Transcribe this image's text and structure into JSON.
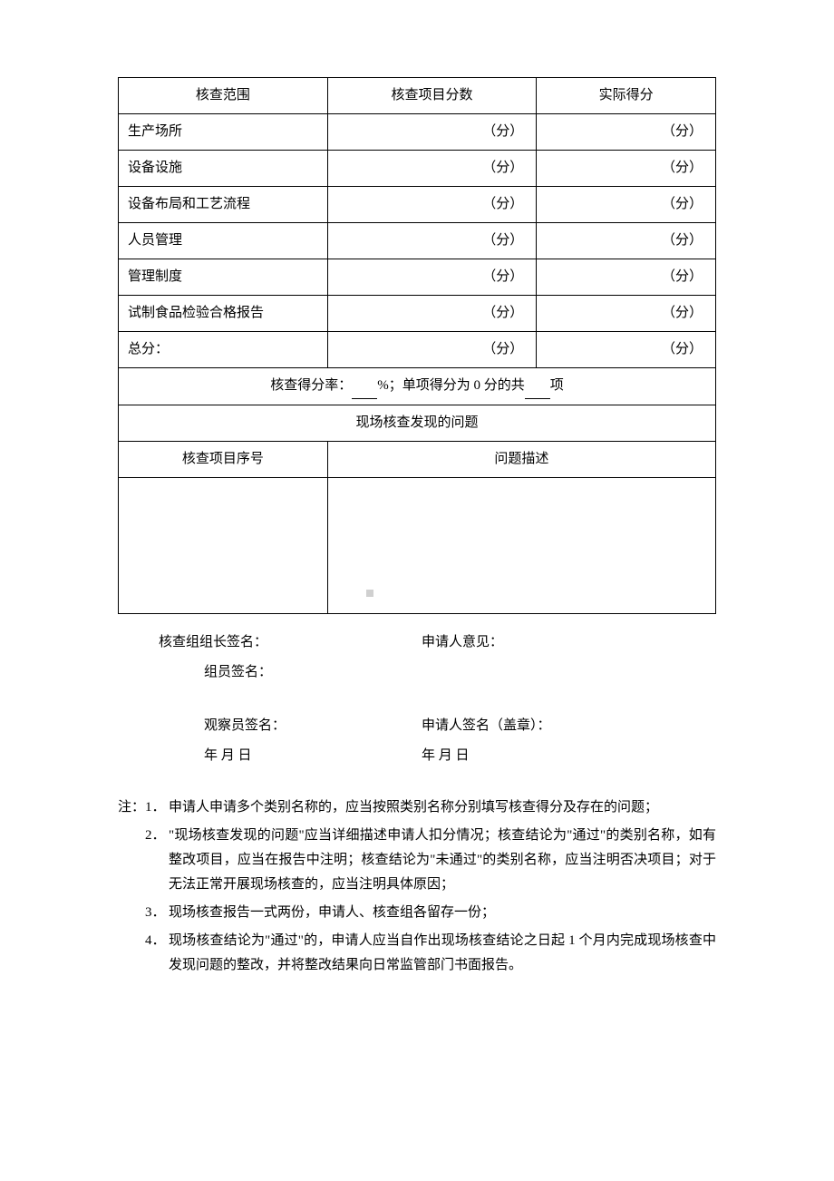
{
  "table": {
    "headers": {
      "scope": "核查范围",
      "item_score": "核查项目分数",
      "actual_score": "实际得分"
    },
    "rows": [
      {
        "label": "生产场所",
        "unit": "（分）"
      },
      {
        "label": "设备设施",
        "unit": "（分）"
      },
      {
        "label": "设备布局和工艺流程",
        "unit": "（分）"
      },
      {
        "label": "人员管理",
        "unit": "（分）"
      },
      {
        "label": "管理制度",
        "unit": "（分）"
      },
      {
        "label": "试制食品检验合格报告",
        "unit": "（分）"
      },
      {
        "label": "总分：",
        "unit": "（分）"
      }
    ],
    "summary": {
      "prefix": "核查得分率：",
      "mid": "%；单项得分为 0 分的共",
      "suffix": "项"
    },
    "problems_section": "现场核查发现的问题",
    "problems_headers": {
      "seq": "核查项目序号",
      "desc": "问题描述"
    }
  },
  "signatures": {
    "leader": "核查组组长签名：",
    "applicant_opinion": "申请人意见：",
    "member": "组员签名：",
    "observer": "观察员签名：",
    "applicant_sign": "申请人签名（盖章）：",
    "date_left": "年   月   日",
    "date_right": "年   月   日"
  },
  "notes": {
    "prefix": "注：",
    "items": [
      "申请人申请多个类别名称的，应当按照类别名称分别填写核查得分及存在的问题；",
      "\"现场核查发现的问题\"应当详细描述申请人扣分情况；核查结论为\"通过\"的类别名称，如有整改项目，应当在报告中注明；核查结论为\"未通过\"的类别名称，应当注明否决项目；对于无法正常开展现场核查的，应当注明具体原因；",
      "现场核查报告一式两份，申请人、核查组各留存一份；",
      "现场核查结论为\"通过\"的，申请人应当自作出现场核查结论之日起 1 个月内完成现场核查中发现问题的整改，并将整改结果向日常监管部门书面报告。"
    ]
  }
}
